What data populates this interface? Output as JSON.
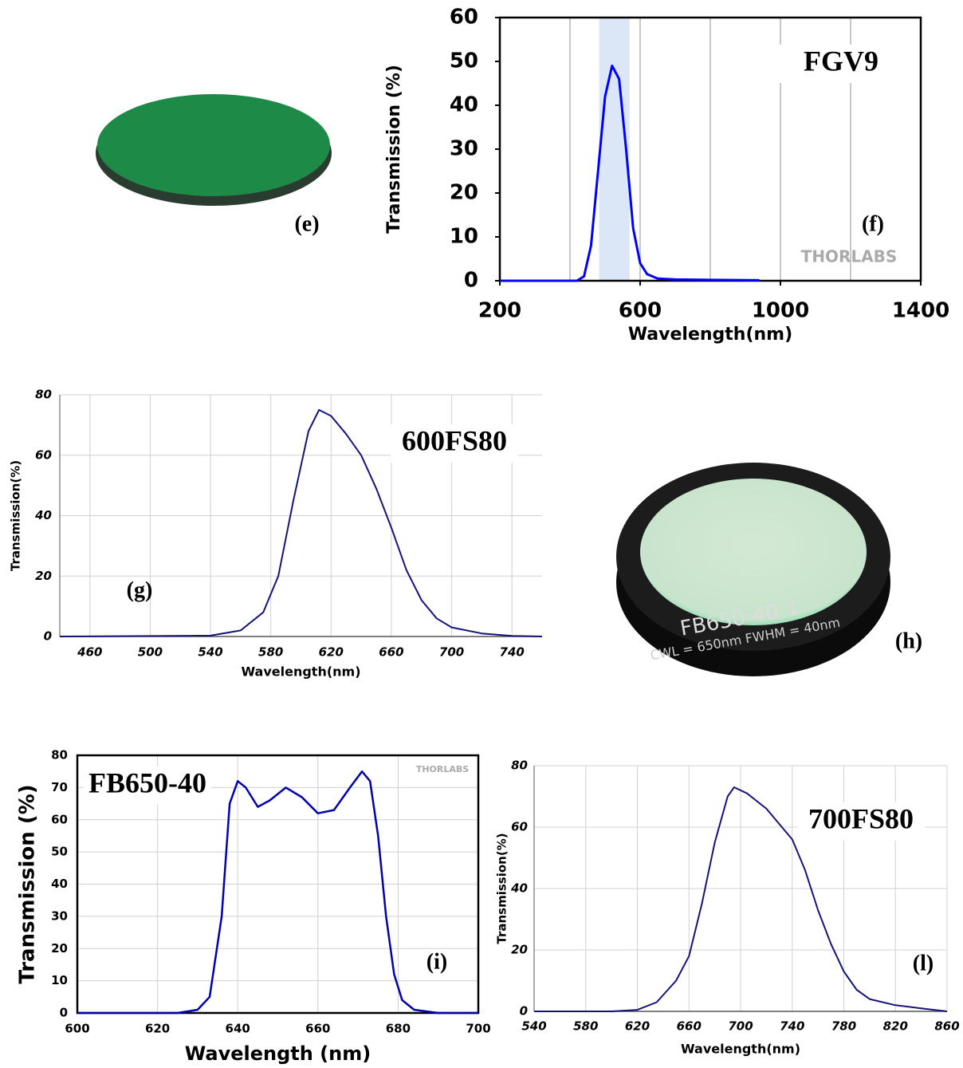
{
  "chart_data": [
    {
      "type": "line",
      "title": "FGV9",
      "panel_label": "(f)",
      "watermark": "THORLABS",
      "x_label": "Wavelength(nm)",
      "y_label": "Transmission (%)",
      "xlim": [
        200,
        1400
      ],
      "xticks": [
        200,
        600,
        1000,
        1400
      ],
      "xgrid": [
        400,
        600,
        800,
        1000,
        1200
      ],
      "ylim": [
        0,
        60
      ],
      "yticks": [
        0,
        10,
        20,
        30,
        40,
        50,
        60
      ],
      "highlight": {
        "range": [
          483,
          570
        ],
        "color": "#dbe6f7"
      },
      "color": "#0000ff",
      "x": [
        200,
        420,
        440,
        460,
        480,
        500,
        520,
        540,
        560,
        580,
        600,
        620,
        650,
        700,
        800,
        940
      ],
      "values": [
        0,
        0,
        1,
        8,
        25,
        42,
        49,
        46,
        30,
        12,
        4,
        1.5,
        0.5,
        0.3,
        0.2,
        0.1
      ]
    },
    {
      "type": "line",
      "title": "600FS80",
      "panel_label": "(g)",
      "x_label": "Wavelength(nm)",
      "y_label": "Transmission(%)",
      "xlim": [
        440,
        760
      ],
      "xticks": [
        460,
        500,
        540,
        580,
        620,
        660,
        700,
        740
      ],
      "ylim": [
        0,
        80
      ],
      "yticks": [
        0,
        20,
        40,
        60,
        80
      ],
      "grid": true,
      "color": "#14147a",
      "x": [
        440,
        540,
        560,
        575,
        585,
        595,
        605,
        612,
        620,
        630,
        640,
        650,
        660,
        670,
        680,
        690,
        700,
        720,
        740,
        760
      ],
      "values": [
        0,
        0.3,
        2,
        8,
        20,
        45,
        68,
        75,
        73,
        67,
        60,
        49,
        36,
        22,
        12,
        6,
        3,
        1,
        0.2,
        0
      ]
    },
    {
      "type": "line",
      "title": "FB650-40",
      "panel_label": "(i)",
      "watermark": "THORLABS",
      "x_label": "Wavelength (nm)",
      "y_label": "Transmission (%)",
      "xlim": [
        600,
        700
      ],
      "xticks": [
        600,
        620,
        640,
        660,
        680,
        700
      ],
      "ylim": [
        0,
        80
      ],
      "yticks": [
        0,
        10,
        20,
        30,
        40,
        50,
        60,
        70,
        80
      ],
      "grid": true,
      "color": "#0000b0",
      "x": [
        600,
        625,
        630,
        633,
        636,
        638,
        640,
        642,
        645,
        648,
        652,
        656,
        660,
        664,
        668,
        671,
        673,
        675,
        677,
        679,
        681,
        684,
        690,
        700
      ],
      "values": [
        0,
        0,
        1,
        5,
        30,
        65,
        72,
        70,
        64,
        66,
        70,
        67,
        62,
        63,
        70,
        75,
        72,
        55,
        30,
        12,
        4,
        1,
        0,
        0
      ]
    },
    {
      "type": "line",
      "title": "700FS80",
      "panel_label": "(l)",
      "x_label": "Wavelength(nm)",
      "y_label": "Transmission(%)",
      "xlim": [
        540,
        860
      ],
      "xticks": [
        540,
        580,
        620,
        660,
        700,
        740,
        780,
        820,
        860
      ],
      "ylim": [
        0,
        80
      ],
      "yticks": [
        0,
        20,
        40,
        60,
        80
      ],
      "grid": true,
      "color": "#14147a",
      "x": [
        540,
        600,
        620,
        635,
        650,
        660,
        670,
        680,
        690,
        695,
        705,
        720,
        740,
        750,
        760,
        770,
        780,
        790,
        800,
        820,
        840,
        860
      ],
      "values": [
        0,
        0,
        0.5,
        3,
        10,
        18,
        35,
        55,
        70,
        73,
        71,
        66,
        56,
        46,
        33,
        22,
        13,
        7,
        4,
        2,
        1,
        0
      ]
    }
  ],
  "photos": [
    {
      "label": "(e)"
    },
    {
      "label": "(h)",
      "engraving": [
        "FB650-40 ↓",
        "CWL = 650nm FWHM = 40nm"
      ]
    }
  ]
}
